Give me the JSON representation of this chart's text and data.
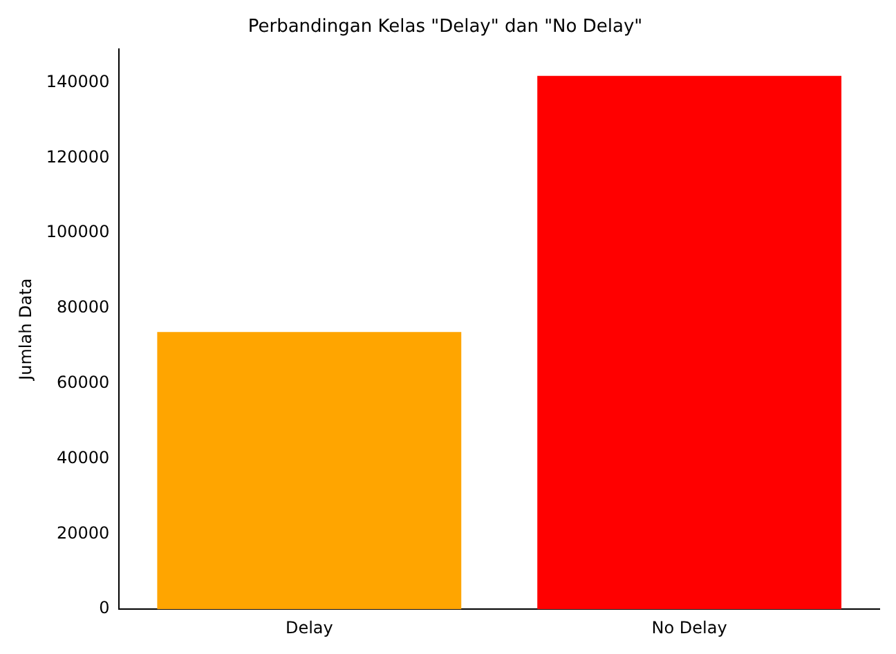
{
  "chart_data": {
    "type": "bar",
    "title": "Perbandingan Kelas \"Delay\" dan \"No Delay\"",
    "ylabel": "Jumlah Data",
    "categories": [
      "Delay",
      "No Delay"
    ],
    "values": [
      73700,
      141800
    ],
    "colors": [
      "#ffa500",
      "#ff0000"
    ],
    "ylim": [
      0,
      148900
    ],
    "yticks": [
      0,
      20000,
      40000,
      60000,
      80000,
      100000,
      120000,
      140000
    ],
    "grid": false,
    "legend": false
  }
}
